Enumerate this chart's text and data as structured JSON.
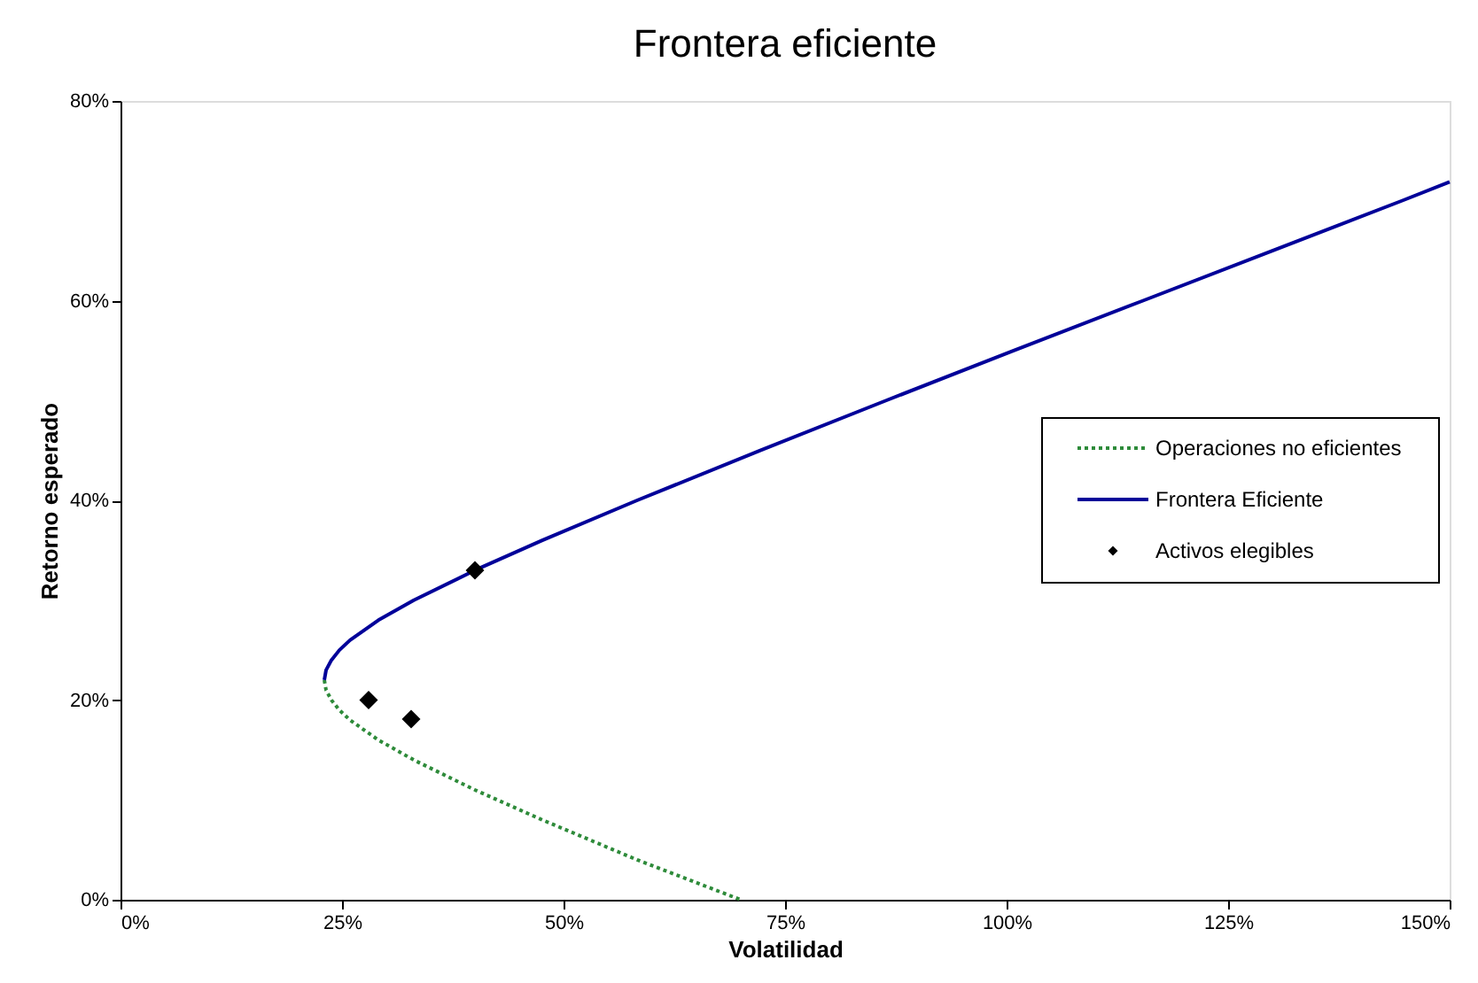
{
  "chart_data": {
    "type": "line",
    "title": "Frontera eficiente",
    "xlabel": "Volatilidad",
    "ylabel": "Retorno esperado",
    "xlim": [
      0,
      150
    ],
    "ylim": [
      0,
      80
    ],
    "xticks": [
      {
        "value": 0,
        "label": "0%"
      },
      {
        "value": 25,
        "label": "25%"
      },
      {
        "value": 50,
        "label": "50%"
      },
      {
        "value": 75,
        "label": "75%"
      },
      {
        "value": 100,
        "label": "100%"
      },
      {
        "value": 125,
        "label": "125%"
      },
      {
        "value": 150,
        "label": "150%"
      }
    ],
    "yticks": [
      {
        "value": 0,
        "label": "0%"
      },
      {
        "value": 20,
        "label": "20%"
      },
      {
        "value": 40,
        "label": "40%"
      },
      {
        "value": 60,
        "label": "60%"
      },
      {
        "value": 80,
        "label": "80%"
      }
    ],
    "grid": false,
    "legend": "right",
    "series": [
      {
        "name": "Operaciones no eficientes",
        "line_style": "dotted",
        "marker": "none",
        "color": "#2e8b3a",
        "x": [
          23,
          23.2,
          23.8,
          24.7,
          25.9,
          29.1,
          33.1,
          40,
          47.6,
          58.3,
          70
        ],
        "values": [
          22,
          21,
          20,
          19,
          18,
          16,
          14,
          11,
          8,
          4,
          0
        ]
      },
      {
        "name": "Frontera Eficiente",
        "line_style": "solid",
        "marker": "none",
        "color": "#000099",
        "x": [
          23,
          23.2,
          23.8,
          24.7,
          25.9,
          29.1,
          33.1,
          40,
          47.6,
          58.3,
          72.2,
          86.4,
          100.8,
          115.4,
          130,
          144.6,
          150
        ],
        "values": [
          22,
          23,
          24,
          25,
          26,
          28,
          30,
          33,
          36,
          40,
          45,
          50,
          55,
          60,
          65,
          70,
          71.9
        ]
      },
      {
        "name": "Activos elegibles",
        "type": "scatter",
        "marker": "diamond",
        "color": "#000000",
        "x": [
          28,
          32.8,
          40
        ],
        "values": [
          20,
          18.1,
          33
        ]
      }
    ]
  }
}
